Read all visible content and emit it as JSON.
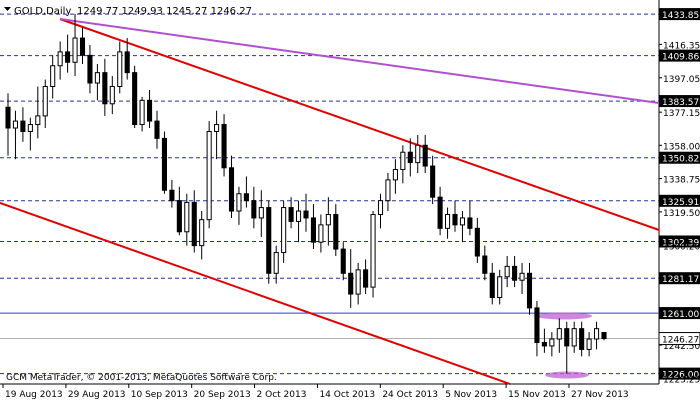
{
  "header": {
    "symbol_timeframe": "GOLD,Daily",
    "ohlc": "1249.77 1249.93 1245.27 1246.27"
  },
  "watermark": "GCM MetaTrader, © 2001-2013, MetaQuotes Software Corp.",
  "colors": {
    "background": "#ffffff",
    "candle": "#000000",
    "channel_line": "#e00000",
    "trend_line": "#b050d0",
    "support_line": "#3040c0",
    "dashed_level": "#2030a0",
    "current_price_line": "#b0b0b0",
    "highlight_ellipse": "#c060d0",
    "price_label_bg": "#000000",
    "price_label_text": "#ffffff"
  },
  "chart_data": {
    "type": "candlestick",
    "y_range": [
      1220,
      1442
    ],
    "price_ticks": [
      "1416.35",
      "1397.05",
      "1377.15",
      "1358.00",
      "1338.75",
      "1319.50",
      "1300.20",
      "1242.50",
      "1223.25"
    ],
    "level_labels": [
      "1433.85",
      "1409.86",
      "1383.57",
      "1350.82",
      "1325.91",
      "1302.39",
      "1281.17",
      "1261.00",
      "1226.00"
    ],
    "current_price_label": "1246.27",
    "x_labels": [
      "19 Aug 2013",
      "29 Aug 2013",
      "10 Sep 2013",
      "20 Sep 2013",
      "2 Oct 2013",
      "14 Oct 2013",
      "24 Oct 2013",
      "5 Nov 2013",
      "15 Nov 2013",
      "27 Nov 2013"
    ],
    "candles": [
      {
        "o": 1380,
        "h": 1388,
        "l": 1352,
        "c": 1368
      },
      {
        "o": 1368,
        "h": 1378,
        "l": 1350,
        "c": 1372
      },
      {
        "o": 1372,
        "h": 1380,
        "l": 1360,
        "c": 1366
      },
      {
        "o": 1366,
        "h": 1374,
        "l": 1355,
        "c": 1370
      },
      {
        "o": 1370,
        "h": 1392,
        "l": 1362,
        "c": 1375
      },
      {
        "o": 1375,
        "h": 1396,
        "l": 1368,
        "c": 1392
      },
      {
        "o": 1392,
        "h": 1410,
        "l": 1385,
        "c": 1404
      },
      {
        "o": 1404,
        "h": 1418,
        "l": 1396,
        "c": 1412
      },
      {
        "o": 1412,
        "h": 1422,
        "l": 1400,
        "c": 1406
      },
      {
        "o": 1406,
        "h": 1434,
        "l": 1398,
        "c": 1420
      },
      {
        "o": 1420,
        "h": 1426,
        "l": 1405,
        "c": 1410
      },
      {
        "o": 1410,
        "h": 1416,
        "l": 1388,
        "c": 1394
      },
      {
        "o": 1394,
        "h": 1405,
        "l": 1384,
        "c": 1400
      },
      {
        "o": 1400,
        "h": 1408,
        "l": 1375,
        "c": 1382
      },
      {
        "o": 1382,
        "h": 1398,
        "l": 1376,
        "c": 1392
      },
      {
        "o": 1392,
        "h": 1418,
        "l": 1388,
        "c": 1412
      },
      {
        "o": 1412,
        "h": 1420,
        "l": 1396,
        "c": 1400
      },
      {
        "o": 1400,
        "h": 1404,
        "l": 1368,
        "c": 1370
      },
      {
        "o": 1370,
        "h": 1386,
        "l": 1366,
        "c": 1384
      },
      {
        "o": 1384,
        "h": 1390,
        "l": 1368,
        "c": 1372
      },
      {
        "o": 1372,
        "h": 1378,
        "l": 1356,
        "c": 1362
      },
      {
        "o": 1362,
        "h": 1366,
        "l": 1330,
        "c": 1332
      },
      {
        "o": 1332,
        "h": 1338,
        "l": 1322,
        "c": 1326
      },
      {
        "o": 1326,
        "h": 1334,
        "l": 1306,
        "c": 1308
      },
      {
        "o": 1308,
        "h": 1330,
        "l": 1300,
        "c": 1325
      },
      {
        "o": 1325,
        "h": 1332,
        "l": 1296,
        "c": 1300
      },
      {
        "o": 1300,
        "h": 1320,
        "l": 1292,
        "c": 1315
      },
      {
        "o": 1315,
        "h": 1372,
        "l": 1310,
        "c": 1366
      },
      {
        "o": 1366,
        "h": 1378,
        "l": 1350,
        "c": 1370
      },
      {
        "o": 1370,
        "h": 1376,
        "l": 1340,
        "c": 1345
      },
      {
        "o": 1345,
        "h": 1352,
        "l": 1316,
        "c": 1320
      },
      {
        "o": 1320,
        "h": 1334,
        "l": 1312,
        "c": 1330
      },
      {
        "o": 1330,
        "h": 1340,
        "l": 1322,
        "c": 1326
      },
      {
        "o": 1326,
        "h": 1334,
        "l": 1310,
        "c": 1316
      },
      {
        "o": 1316,
        "h": 1332,
        "l": 1305,
        "c": 1322
      },
      {
        "o": 1322,
        "h": 1326,
        "l": 1278,
        "c": 1284
      },
      {
        "o": 1284,
        "h": 1300,
        "l": 1278,
        "c": 1296
      },
      {
        "o": 1296,
        "h": 1326,
        "l": 1290,
        "c": 1322
      },
      {
        "o": 1322,
        "h": 1328,
        "l": 1310,
        "c": 1314
      },
      {
        "o": 1314,
        "h": 1326,
        "l": 1302,
        "c": 1320
      },
      {
        "o": 1320,
        "h": 1330,
        "l": 1308,
        "c": 1316
      },
      {
        "o": 1316,
        "h": 1324,
        "l": 1298,
        "c": 1302
      },
      {
        "o": 1302,
        "h": 1318,
        "l": 1296,
        "c": 1312
      },
      {
        "o": 1312,
        "h": 1328,
        "l": 1300,
        "c": 1318
      },
      {
        "o": 1318,
        "h": 1324,
        "l": 1294,
        "c": 1298
      },
      {
        "o": 1298,
        "h": 1302,
        "l": 1280,
        "c": 1284
      },
      {
        "o": 1284,
        "h": 1298,
        "l": 1264,
        "c": 1272
      },
      {
        "o": 1272,
        "h": 1290,
        "l": 1266,
        "c": 1286
      },
      {
        "o": 1286,
        "h": 1292,
        "l": 1272,
        "c": 1276
      },
      {
        "o": 1276,
        "h": 1320,
        "l": 1270,
        "c": 1318
      },
      {
        "o": 1318,
        "h": 1330,
        "l": 1310,
        "c": 1326
      },
      {
        "o": 1326,
        "h": 1342,
        "l": 1320,
        "c": 1338
      },
      {
        "o": 1338,
        "h": 1350,
        "l": 1330,
        "c": 1344
      },
      {
        "o": 1344,
        "h": 1358,
        "l": 1336,
        "c": 1354
      },
      {
        "o": 1354,
        "h": 1362,
        "l": 1340,
        "c": 1348
      },
      {
        "o": 1348,
        "h": 1364,
        "l": 1342,
        "c": 1358
      },
      {
        "o": 1358,
        "h": 1364,
        "l": 1342,
        "c": 1346
      },
      {
        "o": 1346,
        "h": 1352,
        "l": 1324,
        "c": 1328
      },
      {
        "o": 1328,
        "h": 1334,
        "l": 1306,
        "c": 1310
      },
      {
        "o": 1310,
        "h": 1322,
        "l": 1304,
        "c": 1318
      },
      {
        "o": 1318,
        "h": 1326,
        "l": 1308,
        "c": 1312
      },
      {
        "o": 1312,
        "h": 1320,
        "l": 1302,
        "c": 1316
      },
      {
        "o": 1316,
        "h": 1326,
        "l": 1306,
        "c": 1310
      },
      {
        "o": 1310,
        "h": 1316,
        "l": 1290,
        "c": 1294
      },
      {
        "o": 1294,
        "h": 1300,
        "l": 1280,
        "c": 1284
      },
      {
        "o": 1284,
        "h": 1290,
        "l": 1266,
        "c": 1270
      },
      {
        "o": 1270,
        "h": 1286,
        "l": 1266,
        "c": 1282
      },
      {
        "o": 1282,
        "h": 1294,
        "l": 1276,
        "c": 1288
      },
      {
        "o": 1288,
        "h": 1294,
        "l": 1276,
        "c": 1280
      },
      {
        "o": 1280,
        "h": 1290,
        "l": 1272,
        "c": 1284
      },
      {
        "o": 1284,
        "h": 1290,
        "l": 1260,
        "c": 1264
      },
      {
        "o": 1264,
        "h": 1268,
        "l": 1236,
        "c": 1244
      },
      {
        "o": 1244,
        "h": 1252,
        "l": 1238,
        "c": 1242
      },
      {
        "o": 1242,
        "h": 1250,
        "l": 1236,
        "c": 1246
      },
      {
        "o": 1246,
        "h": 1258,
        "l": 1238,
        "c": 1252
      },
      {
        "o": 1252,
        "h": 1256,
        "l": 1226,
        "c": 1242
      },
      {
        "o": 1242,
        "h": 1256,
        "l": 1238,
        "c": 1252
      },
      {
        "o": 1252,
        "h": 1256,
        "l": 1236,
        "c": 1240
      },
      {
        "o": 1240,
        "h": 1250,
        "l": 1236,
        "c": 1246
      },
      {
        "o": 1246,
        "h": 1256,
        "l": 1240,
        "c": 1252
      },
      {
        "o": 1249.77,
        "h": 1249.93,
        "l": 1245.27,
        "c": 1246.27
      }
    ]
  }
}
